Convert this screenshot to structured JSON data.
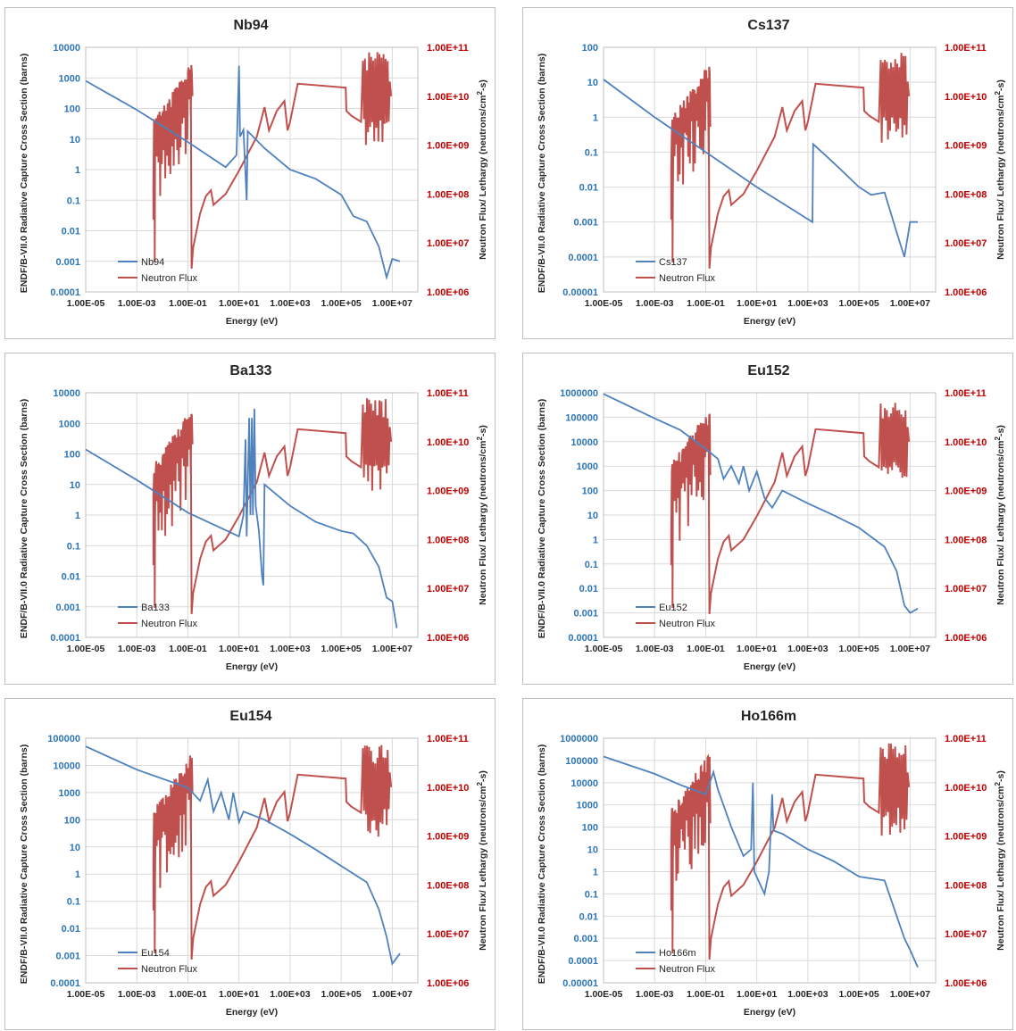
{
  "colors": {
    "cross_section": "#4f81bd",
    "flux": "#c0504d",
    "left_axis_text": "#2e75b6",
    "right_axis_text": "#c00000",
    "grid": "#d9d9d9"
  },
  "common": {
    "xlabel": "Energy (eV)",
    "ylabel_left": "ENDF/B-VII.0 Radiative Capture Cross Section (barns)",
    "ylabel_right_parts": [
      "Neutron Flux/ Lethargy (neutrons/cm",
      "2",
      "-s)"
    ],
    "x_ticks": [
      "1.00E-05",
      "1.00E-03",
      "1.00E-01",
      "1.00E+01",
      "1.00E+03",
      "1.00E+05",
      "1.00E+07"
    ],
    "y2_ticks": [
      "1.00E+06",
      "1.00E+07",
      "1.00E+08",
      "1.00E+09",
      "1.00E+10",
      "1.00E+11"
    ],
    "flux_label": "Neutron Flux"
  },
  "chart_data": [
    {
      "type": "line",
      "title": "Nb94",
      "x_scale": "log",
      "xlim": [
        1e-05,
        100000000.0
      ],
      "y_scale": "log",
      "ylim": [
        0.0001,
        10000
      ],
      "y_ticks": [
        "0.0001",
        "0.001",
        "0.01",
        "0.1",
        "1",
        "10",
        "100",
        "1000",
        "10000"
      ],
      "y2_scale": "log",
      "y2lim": [
        1000000.0,
        100000000000.0
      ],
      "legend_position": "bottom-left",
      "series": [
        {
          "name": "Nb94",
          "axis": "left",
          "points": [
            [
              1e-05,
              800
            ],
            [
              0.001,
              90
            ],
            [
              0.1,
              8
            ],
            [
              3,
              1.2
            ],
            [
              8,
              3
            ],
            [
              10,
              2500
            ],
            [
              11,
              12
            ],
            [
              15,
              20
            ],
            [
              20,
              0.1
            ],
            [
              22,
              18
            ],
            [
              100,
              5
            ],
            [
              1000,
              1
            ],
            [
              10000,
              0.5
            ],
            [
              100000,
              0.15
            ],
            [
              300000,
              0.03
            ],
            [
              1000000,
              0.02
            ],
            [
              3000000,
              0.003
            ],
            [
              6000000,
              0.0003
            ],
            [
              10000000,
              0.0012
            ],
            [
              20000000,
              0.001
            ]
          ]
        },
        {
          "name": "Neutron Flux",
          "axis": "right",
          "points": []
        }
      ]
    },
    {
      "type": "line",
      "title": "Cs137",
      "x_scale": "log",
      "xlim": [
        1e-05,
        100000000.0
      ],
      "y_scale": "log",
      "ylim": [
        1e-05,
        100
      ],
      "y_ticks": [
        "0.00001",
        "0.0001",
        "0.001",
        "0.01",
        "0.1",
        "1",
        "10",
        "100"
      ],
      "y2_scale": "log",
      "y2lim": [
        1000000.0,
        100000000000.0
      ],
      "legend_position": "bottom-left",
      "series": [
        {
          "name": "Cs137",
          "axis": "left",
          "points": [
            [
              1e-05,
              12
            ],
            [
              0.001,
              1
            ],
            [
              0.1,
              0.1
            ],
            [
              10,
              0.01
            ],
            [
              1500,
              0.001
            ],
            [
              1600,
              0.17
            ],
            [
              10000,
              0.05
            ],
            [
              100000,
              0.01
            ],
            [
              300000,
              0.006
            ],
            [
              1000000,
              0.007
            ],
            [
              3000000,
              0.0005
            ],
            [
              6000000,
              0.0001
            ],
            [
              10000000,
              0.001
            ],
            [
              20000000,
              0.001
            ]
          ]
        },
        {
          "name": "Neutron Flux",
          "axis": "right",
          "points": []
        }
      ]
    },
    {
      "type": "line",
      "title": "Ba133",
      "x_scale": "log",
      "xlim": [
        1e-05,
        100000000.0
      ],
      "y_scale": "log",
      "ylim": [
        0.0001,
        10000
      ],
      "y_ticks": [
        "0.0001",
        "0.001",
        "0.01",
        "0.1",
        "1",
        "10",
        "100",
        "1000",
        "10000"
      ],
      "y2_scale": "log",
      "y2lim": [
        1000000.0,
        100000000000.0
      ],
      "legend_position": "bottom-left",
      "series": [
        {
          "name": "Ba133",
          "axis": "left",
          "points": [
            [
              1e-05,
              140
            ],
            [
              0.001,
              14
            ],
            [
              0.1,
              1.2
            ],
            [
              10,
              0.2
            ],
            [
              15,
              1
            ],
            [
              18,
              300
            ],
            [
              20,
              0.2
            ],
            [
              25,
              1500
            ],
            [
              28,
              1
            ],
            [
              32,
              1500
            ],
            [
              35,
              1
            ],
            [
              40,
              3000
            ],
            [
              45,
              2
            ],
            [
              60,
              0.3
            ],
            [
              80,
              0.01
            ],
            [
              90,
              0.005
            ],
            [
              100,
              10
            ],
            [
              1000,
              2
            ],
            [
              10000,
              0.6
            ],
            [
              100000,
              0.3
            ],
            [
              300000,
              0.25
            ],
            [
              1000000,
              0.1
            ],
            [
              3000000,
              0.02
            ],
            [
              6000000,
              0.002
            ],
            [
              10000000,
              0.0015
            ],
            [
              15000000,
              0.0002
            ]
          ]
        },
        {
          "name": "Neutron Flux",
          "axis": "right",
          "points": []
        }
      ]
    },
    {
      "type": "line",
      "title": "Eu152",
      "x_scale": "log",
      "xlim": [
        1e-05,
        100000000.0
      ],
      "y_scale": "log",
      "ylim": [
        0.0001,
        1000000
      ],
      "y_ticks": [
        "0.0001",
        "0.001",
        "0.01",
        "0.1",
        "1",
        "10",
        "100",
        "1000",
        "10000",
        "100000",
        "1000000"
      ],
      "y2_scale": "log",
      "y2lim": [
        1000000.0,
        100000000000.0
      ],
      "legend_position": "bottom-left",
      "series": [
        {
          "name": "Eu152",
          "axis": "left",
          "points": [
            [
              1e-05,
              900000
            ],
            [
              0.001,
              90000
            ],
            [
              0.01,
              30000
            ],
            [
              0.1,
              5000
            ],
            [
              0.3,
              2000
            ],
            [
              0.5,
              300
            ],
            [
              1,
              1000
            ],
            [
              2,
              200
            ],
            [
              3,
              1000
            ],
            [
              5,
              100
            ],
            [
              10,
              600
            ],
            [
              20,
              50
            ],
            [
              40,
              20
            ],
            [
              100,
              100
            ],
            [
              1000,
              30
            ],
            [
              10000,
              10
            ],
            [
              100000,
              3
            ],
            [
              1000000,
              0.5
            ],
            [
              3000000,
              0.05
            ],
            [
              6000000,
              0.002
            ],
            [
              10000000,
              0.001
            ],
            [
              20000000,
              0.0015
            ]
          ]
        },
        {
          "name": "Neutron Flux",
          "axis": "right",
          "points": []
        }
      ]
    },
    {
      "type": "line",
      "title": "Eu154",
      "x_scale": "log",
      "xlim": [
        1e-05,
        100000000.0
      ],
      "y_scale": "log",
      "ylim": [
        0.0001,
        100000
      ],
      "y_ticks": [
        "0.0001",
        "0.001",
        "0.01",
        "0.1",
        "1",
        "10",
        "100",
        "1000",
        "10000",
        "100000"
      ],
      "y2_scale": "log",
      "y2lim": [
        1000000.0,
        100000000000.0
      ],
      "legend_position": "bottom-left",
      "series": [
        {
          "name": "Eu154",
          "axis": "left",
          "points": [
            [
              1e-05,
              50000
            ],
            [
              0.001,
              7000
            ],
            [
              0.1,
              1500
            ],
            [
              0.3,
              500
            ],
            [
              0.6,
              3000
            ],
            [
              1,
              200
            ],
            [
              2,
              1000
            ],
            [
              4,
              100
            ],
            [
              6,
              1000
            ],
            [
              10,
              80
            ],
            [
              15,
              200
            ],
            [
              100,
              100
            ],
            [
              1000,
              30
            ],
            [
              10000,
              8
            ],
            [
              100000,
              2
            ],
            [
              1000000,
              0.5
            ],
            [
              3000000,
              0.05
            ],
            [
              6000000,
              0.005
            ],
            [
              10000000,
              0.0005
            ],
            [
              20000000,
              0.0012
            ]
          ]
        },
        {
          "name": "Neutron Flux",
          "axis": "right",
          "points": []
        }
      ]
    },
    {
      "type": "line",
      "title": "Ho166m",
      "x_scale": "log",
      "xlim": [
        1e-05,
        100000000.0
      ],
      "y_scale": "log",
      "ylim": [
        1e-05,
        1000000
      ],
      "y_ticks": [
        "0.00001",
        "0.0001",
        "0.001",
        "0.01",
        "0.1",
        "1",
        "10",
        "100",
        "1000",
        "10000",
        "100000",
        "1000000"
      ],
      "y2_scale": "log",
      "y2lim": [
        1000000.0,
        100000000000.0
      ],
      "legend_position": "bottom-left",
      "series": [
        {
          "name": "Ho166m",
          "axis": "left",
          "points": [
            [
              1e-05,
              150000
            ],
            [
              0.001,
              25000
            ],
            [
              0.01,
              8000
            ],
            [
              0.1,
              3000
            ],
            [
              0.2,
              30000
            ],
            [
              0.3,
              5000
            ],
            [
              1,
              100
            ],
            [
              3,
              5
            ],
            [
              6,
              10
            ],
            [
              7,
              10000
            ],
            [
              8,
              1
            ],
            [
              20,
              0.1
            ],
            [
              30,
              1
            ],
            [
              40,
              3000
            ],
            [
              45,
              70
            ],
            [
              100,
              50
            ],
            [
              1000,
              10
            ],
            [
              10000,
              3
            ],
            [
              100000,
              0.6
            ],
            [
              1000000,
              0.4
            ],
            [
              3000000,
              0.01
            ],
            [
              6000000,
              0.001
            ],
            [
              10000000,
              0.0003
            ],
            [
              20000000,
              5e-05
            ]
          ]
        },
        {
          "name": "Neutron Flux",
          "axis": "right",
          "points": []
        }
      ]
    }
  ]
}
